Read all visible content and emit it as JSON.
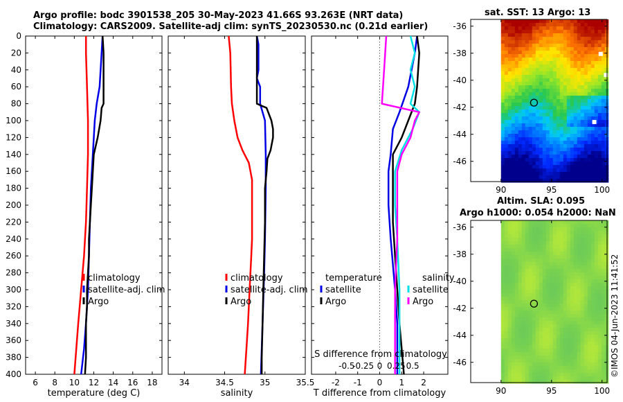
{
  "header": {
    "line1": "Argo profile: bodc 3901538_205 30-May-2023 41.66S 93.263E (NRT data)",
    "line2": "Climatology: CARS2009. Satellite-adj clim: synTS_20230530.nc (0.21d earlier)"
  },
  "credit": "©IMOS 04-Jun-2023 11:41:52",
  "colors": {
    "climatology": "#ff0000",
    "satellite": "#0000e6",
    "argo": "#000000",
    "sal_satellite": "#00e0e6",
    "sal_argo": "#ff00ff"
  },
  "chart_data": [
    {
      "type": "line",
      "id": "temperature",
      "xlabel": "temperature (deg C)",
      "ylabel": "depth",
      "xlim": [
        5,
        19
      ],
      "ylim": [
        400,
        0
      ],
      "xticks": [
        6,
        8,
        10,
        12,
        14,
        16,
        18
      ],
      "yticks": [
        0,
        20,
        40,
        60,
        80,
        100,
        120,
        140,
        160,
        180,
        200,
        220,
        240,
        260,
        280,
        300,
        320,
        340,
        360,
        380,
        400
      ],
      "legend": [
        "climatology",
        "satellite-adj. clim",
        "Argo"
      ],
      "series": [
        {
          "name": "climatology",
          "color": "#ff0000",
          "points": [
            [
              11.2,
              0
            ],
            [
              11.2,
              20
            ],
            [
              11.3,
              60
            ],
            [
              11.4,
              100
            ],
            [
              11.4,
              140
            ],
            [
              11.3,
              180
            ],
            [
              11.2,
              220
            ],
            [
              11.0,
              260
            ],
            [
              10.7,
              300
            ],
            [
              10.4,
              340
            ],
            [
              10.2,
              370
            ],
            [
              10.0,
              400
            ]
          ]
        },
        {
          "name": "satellite-adj. clim",
          "color": "#0000e6",
          "points": [
            [
              12.9,
              0
            ],
            [
              12.8,
              20
            ],
            [
              12.6,
              60
            ],
            [
              12.3,
              80
            ],
            [
              12.1,
              100
            ],
            [
              11.9,
              140
            ],
            [
              11.7,
              180
            ],
            [
              11.6,
              220
            ],
            [
              11.5,
              260
            ],
            [
              11.4,
              300
            ],
            [
              11.2,
              340
            ],
            [
              11.0,
              370
            ],
            [
              10.7,
              400
            ]
          ]
        },
        {
          "name": "Argo",
          "color": "#000000",
          "points": [
            [
              12.9,
              0
            ],
            [
              13.0,
              20
            ],
            [
              13.0,
              40
            ],
            [
              13.0,
              60
            ],
            [
              13.0,
              80
            ],
            [
              12.8,
              85
            ],
            [
              12.7,
              100
            ],
            [
              12.4,
              120
            ],
            [
              12.0,
              140
            ],
            [
              11.9,
              160
            ],
            [
              11.8,
              180
            ],
            [
              11.7,
              200
            ],
            [
              11.6,
              220
            ],
            [
              11.5,
              240
            ],
            [
              11.5,
              260
            ],
            [
              11.4,
              280
            ],
            [
              11.3,
              300
            ],
            [
              11.3,
              320
            ],
            [
              11.2,
              340
            ],
            [
              11.2,
              360
            ],
            [
              11.2,
              380
            ],
            [
              11.1,
              400
            ]
          ]
        }
      ]
    },
    {
      "type": "line",
      "id": "salinity",
      "xlabel": "salinity",
      "xlim": [
        33.8,
        35.5
      ],
      "ylim": [
        400,
        0
      ],
      "xticks": [
        34,
        34.5,
        35,
        35.5
      ],
      "legend": [
        "climatology",
        "satellite-adj. clim",
        "Argo"
      ],
      "series": [
        {
          "name": "climatology",
          "color": "#ff0000",
          "points": [
            [
              34.55,
              0
            ],
            [
              34.57,
              20
            ],
            [
              34.58,
              60
            ],
            [
              34.59,
              80
            ],
            [
              34.62,
              100
            ],
            [
              34.66,
              120
            ],
            [
              34.72,
              135
            ],
            [
              34.8,
              150
            ],
            [
              34.84,
              170
            ],
            [
              34.84,
              200
            ],
            [
              34.84,
              240
            ],
            [
              34.83,
              260
            ],
            [
              34.81,
              300
            ],
            [
              34.79,
              340
            ],
            [
              34.77,
              370
            ],
            [
              34.75,
              400
            ]
          ]
        },
        {
          "name": "satellite-adj. clim",
          "color": "#0000e6",
          "points": [
            [
              34.9,
              0
            ],
            [
              34.92,
              10
            ],
            [
              34.92,
              40
            ],
            [
              34.9,
              50
            ],
            [
              34.94,
              60
            ],
            [
              34.94,
              80
            ],
            [
              34.97,
              90
            ],
            [
              35.0,
              100
            ],
            [
              35.01,
              140
            ],
            [
              35.01,
              180
            ],
            [
              35.0,
              240
            ],
            [
              34.99,
              280
            ],
            [
              34.97,
              340
            ],
            [
              34.95,
              400
            ]
          ]
        },
        {
          "name": "Argo",
          "color": "#000000",
          "points": [
            [
              34.9,
              0
            ],
            [
              34.9,
              80
            ],
            [
              35.02,
              85
            ],
            [
              35.08,
              100
            ],
            [
              35.1,
              110
            ],
            [
              35.1,
              120
            ],
            [
              35.07,
              135
            ],
            [
              35.03,
              145
            ],
            [
              35.02,
              160
            ],
            [
              35.0,
              180
            ],
            [
              35.0,
              220
            ],
            [
              34.99,
              260
            ],
            [
              34.98,
              300
            ],
            [
              34.97,
              340
            ],
            [
              34.96,
              380
            ],
            [
              34.96,
              400
            ]
          ]
        }
      ]
    },
    {
      "type": "line",
      "id": "differences",
      "xlabel": "T difference from climatology",
      "xlabel_top": "S difference from climatology",
      "xlim": [
        -3.1,
        3.1
      ],
      "ylim": [
        400,
        0
      ],
      "xticks": [
        -2,
        -1,
        0,
        1,
        2
      ],
      "top_ticks": [
        "-0.5",
        "-0.25",
        "0",
        "0.25",
        "0.5"
      ],
      "legend_left_title": "temperature",
      "legend_left": [
        "satellite",
        "Argo"
      ],
      "legend_right_title": "salinity",
      "legend_right": [
        "satellite",
        "Argo"
      ],
      "series": [
        {
          "name": "T satellite",
          "color": "#0000e6",
          "points": [
            [
              1.7,
              0
            ],
            [
              1.6,
              20
            ],
            [
              1.3,
              60
            ],
            [
              0.9,
              90
            ],
            [
              0.6,
              110
            ],
            [
              0.5,
              140
            ],
            [
              0.4,
              160
            ],
            [
              0.4,
              200
            ],
            [
              0.5,
              240
            ],
            [
              0.6,
              270
            ],
            [
              0.7,
              300
            ],
            [
              0.8,
              340
            ],
            [
              0.8,
              400
            ]
          ]
        },
        {
          "name": "T Argo",
          "color": "#000000",
          "points": [
            [
              1.7,
              0
            ],
            [
              1.8,
              20
            ],
            [
              1.7,
              60
            ],
            [
              1.6,
              80
            ],
            [
              1.3,
              100
            ],
            [
              1.0,
              120
            ],
            [
              0.6,
              140
            ],
            [
              0.6,
              180
            ],
            [
              0.6,
              220
            ],
            [
              0.7,
              260
            ],
            [
              0.8,
              300
            ],
            [
              0.9,
              340
            ],
            [
              1.1,
              400
            ]
          ]
        },
        {
          "name": "S satellite",
          "color": "#00e0e6",
          "points": [
            [
              1.4,
              0
            ],
            [
              1.6,
              20
            ],
            [
              1.4,
              40
            ],
            [
              1.6,
              60
            ],
            [
              1.4,
              80
            ],
            [
              1.8,
              90
            ],
            [
              1.5,
              110
            ],
            [
              1.0,
              135
            ],
            [
              0.7,
              160
            ],
            [
              0.7,
              200
            ],
            [
              0.8,
              240
            ],
            [
              0.9,
              300
            ],
            [
              0.9,
              400
            ]
          ]
        },
        {
          "name": "S Argo",
          "color": "#ff00ff",
          "points": [
            [
              0.3,
              0
            ],
            [
              0.2,
              40
            ],
            [
              0.1,
              80
            ],
            [
              1.8,
              90
            ],
            [
              1.6,
              100
            ],
            [
              1.4,
              120
            ],
            [
              1.0,
              140
            ],
            [
              0.8,
              160
            ],
            [
              0.8,
              200
            ],
            [
              0.8,
              240
            ],
            [
              0.7,
              300
            ],
            [
              0.7,
              400
            ]
          ]
        }
      ]
    },
    {
      "type": "heatmap",
      "id": "sst_map",
      "title": "sat. SST: 13 Argo: 13",
      "xlim": [
        87,
        100.5
      ],
      "ylim": [
        -47.5,
        -35.5
      ],
      "xticks": [
        90,
        95,
        100
      ],
      "yticks": [
        -36,
        -38,
        -40,
        -42,
        -44,
        -46
      ],
      "marker": [
        93.263,
        -41.66
      ]
    },
    {
      "type": "heatmap",
      "id": "sla_map",
      "title1": "Altim. SLA: 0.095",
      "title2": "Argo h1000: 0.054 h2000: NaN",
      "xlim": [
        87,
        100.5
      ],
      "ylim": [
        -47.5,
        -35.5
      ],
      "xticks": [
        90,
        95,
        100
      ],
      "yticks": [
        -36,
        -38,
        -40,
        -42,
        -44,
        -46
      ],
      "marker": [
        93.263,
        -41.66
      ]
    }
  ]
}
